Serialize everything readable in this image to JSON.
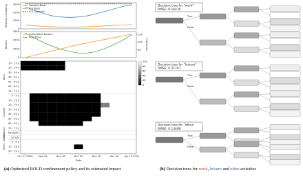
{
  "left": {
    "occupancy": {
      "type": "line",
      "ylabel": "Hospital occupancy",
      "ylim": [
        0,
        3200
      ],
      "yticks": [
        0,
        1000,
        2000,
        3000
      ],
      "series": [
        {
          "name": "Hospital Beds",
          "color": "#1f77b4",
          "values": [
            2700,
            2300,
            1900,
            1600,
            1450,
            1400,
            1450,
            1600,
            1850,
            2150,
            2450,
            2750,
            2950
          ]
        },
        {
          "name": "ICU Beds",
          "color": "#ff7f0e",
          "values": [
            450,
            380,
            300,
            250,
            220,
            210,
            220,
            250,
            300,
            360,
            420,
            480,
            520
          ]
        },
        {
          "name": "ICU Capacity",
          "color": "#000000",
          "dashed": true,
          "values": [
            3050,
            3050,
            3050,
            3050,
            3050,
            3050,
            3050,
            3050,
            3050,
            3050,
            3050,
            3050,
            3050
          ]
        }
      ]
    },
    "epidemic": {
      "type": "line",
      "ylabel": "Deaths",
      "y2label": "Infectious",
      "ylim": [
        0,
        3000
      ],
      "yticks": [
        0,
        1000,
        2000,
        3000
      ],
      "y2lim": [
        0,
        170
      ],
      "y2ticks": [
        50,
        100,
        150
      ],
      "series": [
        {
          "name": "Cumulative Deaths",
          "color": "#ff7f0e",
          "values": [
            0,
            250,
            500,
            750,
            1000,
            1250,
            1500,
            1700,
            1900,
            2100,
            2300,
            2500,
            2700
          ]
        },
        {
          "name": "Infectious",
          "color": "#2ca02c",
          "axis": "y2",
          "values": [
            160,
            130,
            100,
            75,
            55,
            40,
            30,
            30,
            40,
            60,
            85,
            115,
            150
          ]
        }
      ]
    },
    "heatmap": {
      "type": "heatmap",
      "clim": [
        0,
        100
      ],
      "cticks": [
        0,
        20,
        40,
        60,
        80,
        100
      ],
      "groups": [
        {
          "name": "Work",
          "rows": [
            {
              "label": "10 - 19 y",
              "values": [
                0,
                0,
                0,
                0,
                0,
                100,
                100,
                100,
                100,
                100,
                100,
                100,
                100
              ]
            },
            {
              "label": "20 - 29 y",
              "values": [
                0,
                0,
                0,
                0,
                0,
                100,
                100,
                100,
                100,
                100,
                100,
                100,
                100
              ]
            },
            {
              "label": "30 - 39 y",
              "values": [
                100,
                100,
                100,
                100,
                100,
                100,
                100,
                100,
                100,
                100,
                100,
                100,
                100
              ]
            },
            {
              "label": "40 - 49 y",
              "values": [
                100,
                100,
                100,
                100,
                100,
                100,
                100,
                100,
                100,
                100,
                100,
                100,
                100
              ]
            },
            {
              "label": "50 - 59 y",
              "values": [
                100,
                100,
                100,
                100,
                100,
                100,
                100,
                100,
                100,
                100,
                100,
                100,
                100
              ]
            },
            {
              "label": "60 - 69 y",
              "values": [
                100,
                100,
                100,
                100,
                100,
                100,
                100,
                100,
                100,
                100,
                100,
                100,
                100
              ]
            },
            {
              "label": "70 - 79 y",
              "values": [
                100,
                100,
                100,
                100,
                100,
                100,
                100,
                100,
                100,
                100,
                100,
                100,
                100
              ]
            }
          ]
        },
        {
          "name": "Leisure",
          "rows": [
            {
              "label": "0 - 9 y",
              "values": [
                100,
                0,
                0,
                0,
                0,
                0,
                0,
                0,
                0,
                100,
                100,
                100,
                100
              ]
            },
            {
              "label": "10 - 19 y",
              "values": [
                100,
                0,
                0,
                0,
                0,
                0,
                0,
                0,
                0,
                100,
                100,
                100,
                100
              ]
            },
            {
              "label": "20 - 29 y",
              "values": [
                100,
                0,
                0,
                0,
                0,
                0,
                0,
                0,
                0,
                50,
                100,
                100,
                100
              ]
            },
            {
              "label": "30 - 39 y",
              "values": [
                100,
                0,
                0,
                0,
                0,
                0,
                0,
                0,
                0,
                100,
                100,
                100,
                100
              ]
            },
            {
              "label": "40 - 49 y",
              "values": [
                100,
                0,
                0,
                0,
                0,
                0,
                0,
                0,
                0,
                100,
                100,
                100,
                100
              ]
            },
            {
              "label": "50 - 59 y",
              "values": [
                100,
                0,
                0,
                0,
                0,
                0,
                0,
                0,
                100,
                100,
                100,
                100,
                100
              ]
            },
            {
              "label": "60 - 69 y",
              "values": [
                100,
                100,
                0,
                0,
                0,
                0,
                0,
                100,
                100,
                100,
                100,
                100,
                100
              ]
            },
            {
              "label": "70 - 79 y",
              "values": [
                100,
                100,
                100,
                100,
                100,
                100,
                100,
                100,
                100,
                100,
                100,
                100,
                100
              ]
            }
          ]
        },
        {
          "name": "Transport",
          "rows": [
            {
              "label": "Transport",
              "values": [
                100,
                100,
                100,
                100,
                100,
                100,
                100,
                100,
                100,
                100,
                100,
                100,
                100
              ]
            }
          ]
        },
        {
          "name": "School",
          "rows": [
            {
              "label": "School",
              "values": [
                100,
                100,
                100,
                100,
                100,
                100,
                100,
                100,
                100,
                100,
                100,
                100,
                100
              ]
            }
          ]
        },
        {
          "name": "Other",
          "rows": [
            {
              "label": "0 - 9 y",
              "values": [
                100,
                100,
                100,
                100,
                100,
                100,
                100,
                100,
                100,
                100,
                100,
                100,
                100
              ]
            },
            {
              "label": "10 - 19 y",
              "values": [
                100,
                100,
                100,
                100,
                100,
                100,
                0,
                100,
                100,
                100,
                100,
                100,
                100
              ]
            },
            {
              "label": "20 - 29 y",
              "values": [
                100,
                100,
                100,
                100,
                100,
                100,
                100,
                100,
                100,
                100,
                100,
                100,
                100
              ]
            }
          ]
        }
      ]
    },
    "xticks": [
      "Oct 21 2020",
      "Nov 04",
      "Nov 18",
      "Dec 02",
      "Dec 16",
      "Dec 30",
      "Jan 13 2021"
    ],
    "xlabel": "Date",
    "caption": {
      "label": "(a)",
      "text": "Optimized ROLD confinement policy and its estimated impact"
    }
  },
  "right": {
    "trees": [
      {
        "title": "Decision tree for \"work\"",
        "rmse": "RMSE: 0.16439",
        "edges": [
          "True",
          "False"
        ]
      },
      {
        "title": "Decision tree for \"leisure\"",
        "rmse": "RMSE: 0.21707",
        "edges": [
          "True",
          "False"
        ]
      },
      {
        "title": "Decision tree for \"other\"",
        "rmse": "RMSE: 0.13489",
        "edges": [
          "True",
          "False"
        ]
      }
    ],
    "caption": {
      "label": "(b)",
      "parts": [
        "Decision trees for",
        "work",
        ",",
        "leisure",
        "and",
        "other",
        "activities"
      ]
    }
  }
}
